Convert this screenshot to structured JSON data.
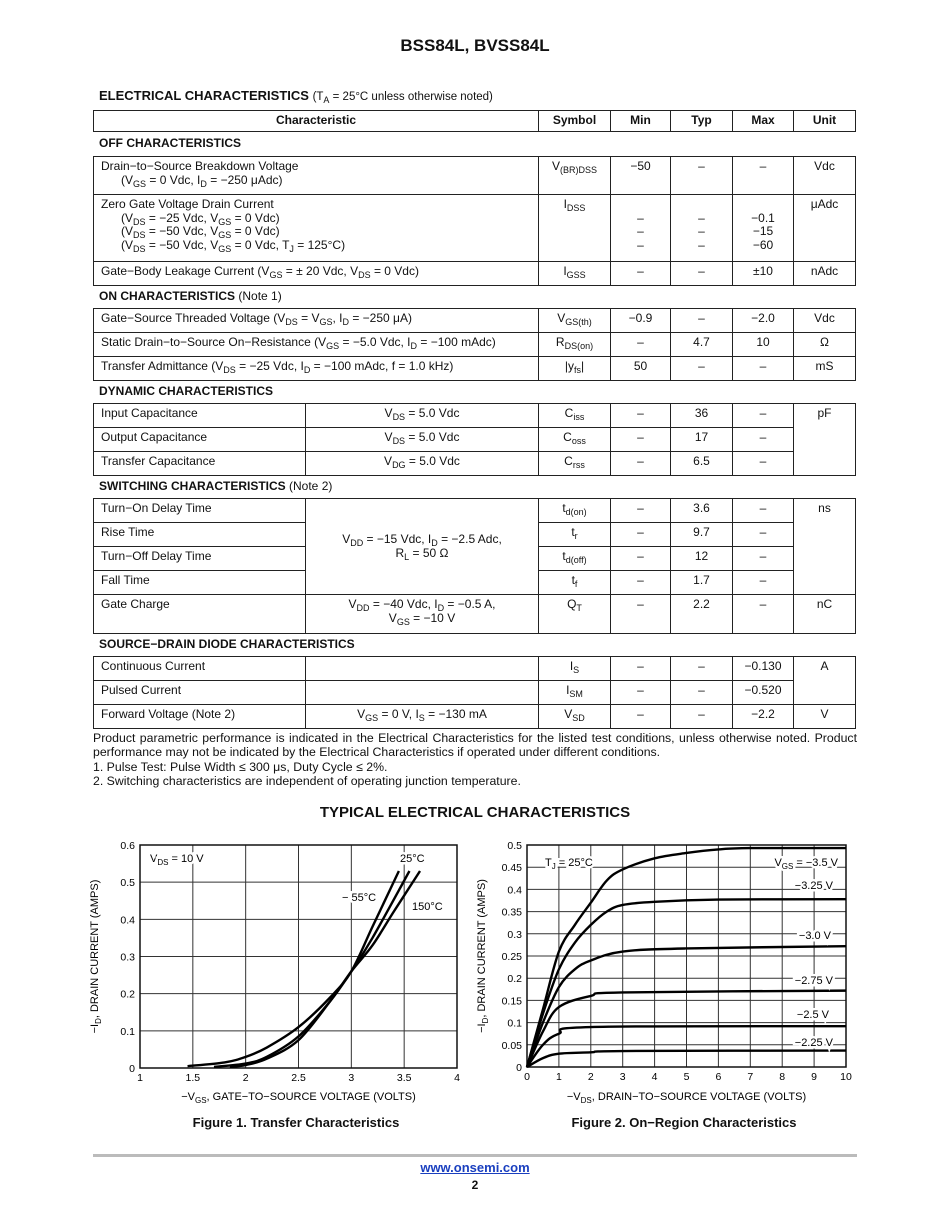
{
  "document": {
    "title": "BSS84L, BVSS84L",
    "ec_heading": "ELECTRICAL CHARACTERISTICS",
    "ec_heading_note": "(T_{A} = 25°C unless otherwise noted)",
    "columns": [
      "Characteristic",
      "Symbol",
      "Min",
      "Typ",
      "Max",
      "Unit"
    ],
    "sections": [
      {
        "key": "off",
        "title": "OFF CHARACTERISTICS",
        "note": "",
        "rows": [
          {
            "char": [
              "Drain−to−Source Breakdown Voltage",
              "(V_{GS} = 0 Vdc, I_{D} = −250 μAdc)"
            ],
            "symbol": "V_{(BR)DSS}",
            "min": [
              "−50"
            ],
            "typ": [
              "–"
            ],
            "max": [
              "–"
            ],
            "unit": "Vdc"
          },
          {
            "char": [
              "Zero Gate Voltage Drain Current",
              "(V_{DS} = −25 Vdc, V_{GS} = 0 Vdc)",
              "(V_{DS} = −50 Vdc, V_{GS} = 0 Vdc)",
              "(V_{DS} = −50 Vdc, V_{GS} = 0 Vdc, T_{J} = 125°C)"
            ],
            "symbol": "I_{DSS}",
            "min": [
              "",
              "–",
              "–",
              "–"
            ],
            "typ": [
              "",
              "–",
              "–",
              "–"
            ],
            "max": [
              "",
              "−0.1",
              "−15",
              "−60"
            ],
            "unit": "μAdc"
          },
          {
            "char": [
              "Gate−Body Leakage Current (V_{GS} = ± 20 Vdc, V_{DS} = 0 Vdc)"
            ],
            "symbol": "I_{GSS}",
            "min": [
              "–"
            ],
            "typ": [
              "–"
            ],
            "max": [
              "±10"
            ],
            "unit": "nAdc"
          }
        ]
      },
      {
        "key": "on",
        "title": "ON CHARACTERISTICS",
        "note": "(Note 1)",
        "rows": [
          {
            "char": [
              "Gate−Source Threaded Voltage (V_{DS} = V_{GS}, I_{D} = −250 μA)"
            ],
            "symbol": "V_{GS(th)}",
            "min": [
              "−0.9"
            ],
            "typ": [
              "–"
            ],
            "max": [
              "−2.0"
            ],
            "unit": "Vdc"
          },
          {
            "char": [
              "Static Drain−to−Source On−Resistance (V_{GS} = −5.0 Vdc, I_{D} = −100 mAdc)"
            ],
            "symbol": "R_{DS(on)}",
            "min": [
              "–"
            ],
            "typ": [
              "4.7"
            ],
            "max": [
              "10"
            ],
            "unit": "Ω"
          },
          {
            "char": [
              "Transfer Admittance (V_{DS} = −25 Vdc, I_{D} = −100 mAdc, f = 1.0 kHz)"
            ],
            "symbol": "|y_{fs}|",
            "min": [
              "50"
            ],
            "typ": [
              "–"
            ],
            "max": [
              "–"
            ],
            "unit": "mS"
          }
        ]
      },
      {
        "key": "dynamic",
        "title": "DYNAMIC CHARACTERISTICS",
        "note": "",
        "rows": [
          {
            "char": [
              "Input Capacitance"
            ],
            "cond": [
              "V_{DS} = 5.0 Vdc"
            ],
            "symbol": "C_{iss}",
            "min": [
              "–"
            ],
            "typ": [
              "36"
            ],
            "max": [
              "–"
            ],
            "unit": "pF"
          },
          {
            "char": [
              "Output Capacitance"
            ],
            "cond": [
              "V_{DS} = 5.0 Vdc"
            ],
            "symbol": "C_{oss}",
            "min": [
              "–"
            ],
            "typ": [
              "17"
            ],
            "max": [
              "–"
            ]
          },
          {
            "char": [
              "Transfer Capacitance"
            ],
            "cond": [
              "V_{DG} = 5.0 Vdc"
            ],
            "symbol": "C_{rss}",
            "min": [
              "–"
            ],
            "typ": [
              "6.5"
            ],
            "max": [
              "–"
            ]
          }
        ]
      },
      {
        "key": "switching",
        "title": "SWITCHING CHARACTERISTICS",
        "note": "(Note 2)",
        "rows": [
          {
            "char": [
              "Turn−On Delay Time"
            ],
            "cond": [
              "V_{DD} = −15 Vdc, I_{D} = −2.5 Adc,",
              "R_{L} = 50 Ω"
            ],
            "symbol": "t_{d(on)}",
            "min": [
              "–"
            ],
            "typ": [
              "3.6"
            ],
            "max": [
              "–"
            ],
            "unit": "ns"
          },
          {
            "char": [
              "Rise Time"
            ],
            "symbol": "t_{r}",
            "min": [
              "–"
            ],
            "typ": [
              "9.7"
            ],
            "max": [
              "–"
            ]
          },
          {
            "char": [
              "Turn−Off Delay Time"
            ],
            "symbol": "t_{d(off)}",
            "min": [
              "–"
            ],
            "typ": [
              "12"
            ],
            "max": [
              "–"
            ]
          },
          {
            "char": [
              "Fall Time"
            ],
            "symbol": "t_{f}",
            "min": [
              "–"
            ],
            "typ": [
              "1.7"
            ],
            "max": [
              "–"
            ]
          },
          {
            "char": [
              "Gate Charge"
            ],
            "cond": [
              "V_{DD} = −40 Vdc, I_{D} = −0.5 A,",
              "V_{GS} = −10 V"
            ],
            "symbol": "Q_{T}",
            "min": [
              "–"
            ],
            "typ": [
              "2.2"
            ],
            "max": [
              "–"
            ],
            "unit": "nC"
          }
        ]
      },
      {
        "key": "source_drain",
        "title": "SOURCE−DRAIN DIODE CHARACTERISTICS",
        "note": "",
        "rows": [
          {
            "char": [
              "Continuous Current"
            ],
            "cond": [
              ""
            ],
            "symbol": "I_{S}",
            "min": [
              "–"
            ],
            "typ": [
              "–"
            ],
            "max": [
              "−0.130"
            ],
            "unit": "A"
          },
          {
            "char": [
              "Pulsed Current"
            ],
            "cond": [
              ""
            ],
            "symbol": "I_{SM}",
            "min": [
              "–"
            ],
            "typ": [
              "–"
            ],
            "max": [
              "−0.520"
            ]
          },
          {
            "char": [
              "Forward Voltage (Note 2)"
            ],
            "cond": [
              "V_{GS} = 0 V, I_{S} = −130 mA"
            ],
            "symbol": "V_{SD}",
            "min": [
              "–"
            ],
            "typ": [
              "–"
            ],
            "max": [
              "−2.2"
            ],
            "unit": "V"
          }
        ]
      }
    ],
    "notes": [
      "Product parametric performance is indicated in the Electrical Characteristics for the listed test conditions, unless otherwise noted. Product performance may not be indicated by the Electrical Characteristics if operated under different conditions.",
      "1.  Pulse Test: Pulse Width ≤ 300 μs, Duty Cycle ≤ 2%.",
      "2.  Switching characteristics are independent of operating junction temperature."
    ],
    "typical_heading": "TYPICAL ELECTRICAL CHARACTERISTICS",
    "figure_captions": [
      "Figure 1. Transfer Characteristics",
      "Figure 2. On−Region Characteristics"
    ],
    "footer_link": "www.onsemi.com",
    "page_number": "2"
  },
  "chart_data": [
    {
      "type": "line",
      "title": "Figure 1. Transfer Characteristics",
      "xlabel": "−V_{GS}, GATE−TO−SOURCE VOLTAGE (VOLTS)",
      "ylabel": "−I_{D}, DRAIN CURRENT (AMPS)",
      "xlim": [
        1,
        4
      ],
      "ylim": [
        0,
        0.6
      ],
      "grid": true,
      "xticks": [
        "1",
        "1.5",
        "2",
        "2.5",
        "3",
        "3.5",
        "4"
      ],
      "yticks": [
        "0",
        "0.1",
        "0.2",
        "0.3",
        "0.4",
        "0.5",
        "0.6"
      ],
      "annotations": [
        "V_{DS} = 10 V"
      ],
      "series": [
        {
          "name": "− 55°C",
          "x": [
            1.45,
            1.8,
            2.0,
            2.2,
            2.5,
            2.8,
            3.0,
            3.2,
            3.45
          ],
          "y": [
            0.005,
            0.015,
            0.03,
            0.055,
            0.11,
            0.19,
            0.26,
            0.38,
            0.53
          ]
        },
        {
          "name": "25°C",
          "x": [
            1.7,
            2.0,
            2.2,
            2.5,
            2.8,
            3.0,
            3.2,
            3.55
          ],
          "y": [
            0.003,
            0.012,
            0.03,
            0.085,
            0.18,
            0.26,
            0.35,
            0.53
          ]
        },
        {
          "name": "150°C",
          "x": [
            1.85,
            2.0,
            2.2,
            2.5,
            2.8,
            3.0,
            3.2,
            3.4,
            3.65
          ],
          "y": [
            0.003,
            0.008,
            0.025,
            0.075,
            0.18,
            0.26,
            0.33,
            0.42,
            0.53
          ]
        }
      ]
    },
    {
      "type": "line",
      "title": "Figure 2. On−Region Characteristics",
      "xlabel": "−V_{DS}, DRAIN−TO−SOURCE VOLTAGE (VOLTS)",
      "ylabel": "−I_{D}, DRAIN CURRENT (AMPS)",
      "xlim": [
        0,
        10
      ],
      "ylim": [
        0,
        0.5
      ],
      "grid": true,
      "xticks": [
        "0",
        "1",
        "2",
        "3",
        "4",
        "5",
        "6",
        "7",
        "8",
        "9",
        "10"
      ],
      "yticks": [
        "0",
        "0.05",
        "0.1",
        "0.15",
        "0.2",
        "0.25",
        "0.3",
        "0.35",
        "0.4",
        "0.45",
        "0.5"
      ],
      "annotations": [
        "T_{J} = 25°C"
      ],
      "series": [
        {
          "name": "V_{GS} = −3.5 V",
          "x": [
            0,
            0.5,
            1,
            1.5,
            2,
            2.5,
            3,
            4,
            5,
            6,
            7,
            10
          ],
          "y": [
            0,
            0.13,
            0.26,
            0.32,
            0.37,
            0.42,
            0.445,
            0.47,
            0.482,
            0.49,
            0.493,
            0.493
          ]
        },
        {
          "name": "−3.25 V",
          "x": [
            0,
            0.5,
            1,
            1.5,
            2,
            2.5,
            3,
            4,
            6,
            10
          ],
          "y": [
            0,
            0.12,
            0.22,
            0.28,
            0.32,
            0.35,
            0.365,
            0.372,
            0.377,
            0.378
          ]
        },
        {
          "name": "−3.0 V",
          "x": [
            0,
            0.5,
            1,
            1.5,
            2,
            3,
            5,
            10
          ],
          "y": [
            0,
            0.1,
            0.18,
            0.22,
            0.24,
            0.26,
            0.267,
            0.272
          ]
        },
        {
          "name": "−2.75 V",
          "x": [
            0,
            0.5,
            1,
            2,
            3,
            10
          ],
          "y": [
            0,
            0.08,
            0.135,
            0.16,
            0.168,
            0.172
          ]
        },
        {
          "name": "−2.5 V",
          "x": [
            0,
            0.5,
            1,
            2,
            10
          ],
          "y": [
            0,
            0.05,
            0.075,
            0.09,
            0.092
          ]
        },
        {
          "name": "−2.25 V",
          "x": [
            0,
            0.5,
            1,
            2,
            3,
            10
          ],
          "y": [
            0,
            0.02,
            0.03,
            0.033,
            0.036,
            0.037
          ]
        }
      ]
    }
  ]
}
